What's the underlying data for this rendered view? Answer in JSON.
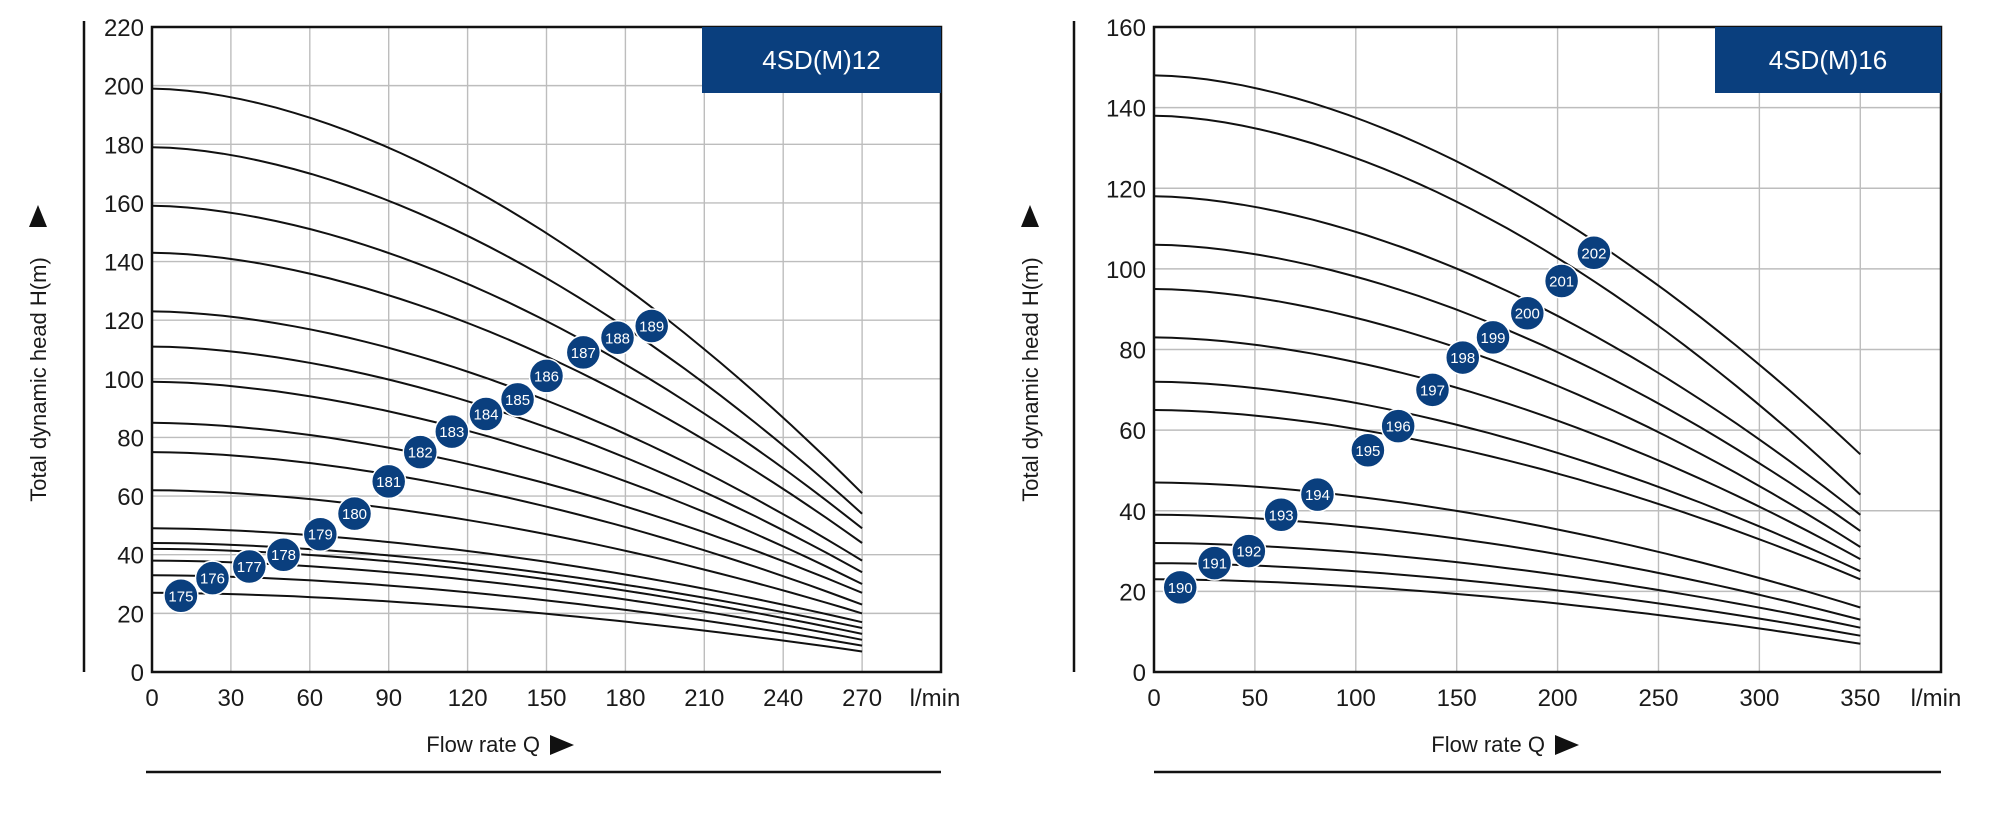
{
  "colors": {
    "badge": "#0a3f7e",
    "marker": "#0a3f7e",
    "curve": "#111111",
    "grid": "#bdbdbd"
  },
  "chart_data": [
    {
      "type": "line",
      "title": "4SD(M)12",
      "xlabel": "Flow rate Q",
      "ylabel": "Total dynamic head H(m)",
      "x_unit": "l/min",
      "xlim": [
        0,
        300
      ],
      "ylim": [
        0,
        220
      ],
      "x_ticks": [
        0,
        30,
        60,
        90,
        120,
        150,
        180,
        210,
        240,
        270
      ],
      "y_ticks": [
        0,
        20,
        40,
        60,
        80,
        100,
        120,
        140,
        160,
        180,
        200,
        220
      ],
      "grid": true,
      "x_end": 270,
      "series": [
        {
          "name": "175",
          "h0": 27,
          "h_end": 7,
          "marker": [
            11,
            26
          ]
        },
        {
          "name": "176",
          "h0": 33,
          "h_end": 9,
          "marker": [
            23,
            32
          ]
        },
        {
          "name": "177",
          "h0": 38,
          "h_end": 11,
          "marker": [
            37,
            36
          ]
        },
        {
          "name": "178",
          "h0": 42,
          "h_end": 13,
          "marker": [
            50,
            40
          ]
        },
        {
          "name": "179",
          "h0": 44,
          "h_end": 15,
          "marker": [
            64,
            47
          ]
        },
        {
          "name": "180",
          "h0": 49,
          "h_end": 17,
          "marker": [
            77,
            54
          ]
        },
        {
          "name": "181",
          "h0": 62,
          "h_end": 20,
          "marker": [
            90,
            65
          ]
        },
        {
          "name": "182",
          "h0": 75,
          "h_end": 23,
          "marker": [
            102,
            75
          ]
        },
        {
          "name": "183",
          "h0": 85,
          "h_end": 27,
          "marker": [
            114,
            82
          ]
        },
        {
          "name": "184",
          "h0": 99,
          "h_end": 30,
          "marker": [
            127,
            88
          ]
        },
        {
          "name": "185",
          "h0": 111,
          "h_end": 34,
          "marker": [
            139,
            93
          ]
        },
        {
          "name": "186",
          "h0": 123,
          "h_end": 38,
          "marker": [
            150,
            101
          ]
        },
        {
          "name": "187",
          "h0": 143,
          "h_end": 44,
          "marker": [
            164,
            109
          ]
        },
        {
          "name": "188",
          "h0": 159,
          "h_end": 49,
          "marker": [
            177,
            114
          ]
        },
        {
          "name": "189",
          "h0": 179,
          "h_end": 54,
          "marker": [
            190,
            118
          ]
        },
        {
          "name": "",
          "h0": 199,
          "h_end": 61
        }
      ]
    },
    {
      "type": "line",
      "title": "4SD(M)16",
      "xlabel": "Flow rate Q",
      "ylabel": "Total dynamic head H(m)",
      "x_unit": "l/min",
      "xlim": [
        0,
        390
      ],
      "ylim": [
        0,
        160
      ],
      "x_ticks": [
        0,
        50,
        100,
        150,
        200,
        250,
        300,
        350
      ],
      "y_ticks": [
        0,
        20,
        40,
        60,
        80,
        100,
        120,
        140,
        160
      ],
      "grid": true,
      "x_end": 350,
      "series": [
        {
          "name": "190",
          "h0": 23,
          "h_end": 7,
          "marker": [
            13,
            21
          ]
        },
        {
          "name": "191",
          "h0": 27,
          "h_end": 9,
          "marker": [
            30,
            27
          ]
        },
        {
          "name": "192",
          "h0": 32,
          "h_end": 11,
          "marker": [
            47,
            30
          ]
        },
        {
          "name": "193",
          "h0": 39,
          "h_end": 13,
          "marker": [
            63,
            39
          ]
        },
        {
          "name": "194",
          "h0": 47,
          "h_end": 16,
          "marker": [
            81,
            44
          ]
        },
        {
          "name": "195",
          "h0": 65,
          "h_end": 23,
          "marker": [
            106,
            55
          ]
        },
        {
          "name": "196",
          "h0": 72,
          "h_end": 25,
          "marker": [
            121,
            61
          ]
        },
        {
          "name": "197",
          "h0": 83,
          "h_end": 28,
          "marker": [
            138,
            70
          ]
        },
        {
          "name": "198",
          "h0": 95,
          "h_end": 31,
          "marker": [
            153,
            78
          ]
        },
        {
          "name": "199",
          "h0": 106,
          "h_end": 35,
          "marker": [
            168,
            83
          ]
        },
        {
          "name": "200",
          "h0": 118,
          "h_end": 39,
          "marker": [
            185,
            89
          ]
        },
        {
          "name": "201",
          "h0": 138,
          "h_end": 44,
          "marker": [
            202,
            97
          ]
        },
        {
          "name": "202",
          "h0": 148,
          "h_end": 54,
          "marker": [
            218,
            104
          ]
        }
      ]
    }
  ]
}
